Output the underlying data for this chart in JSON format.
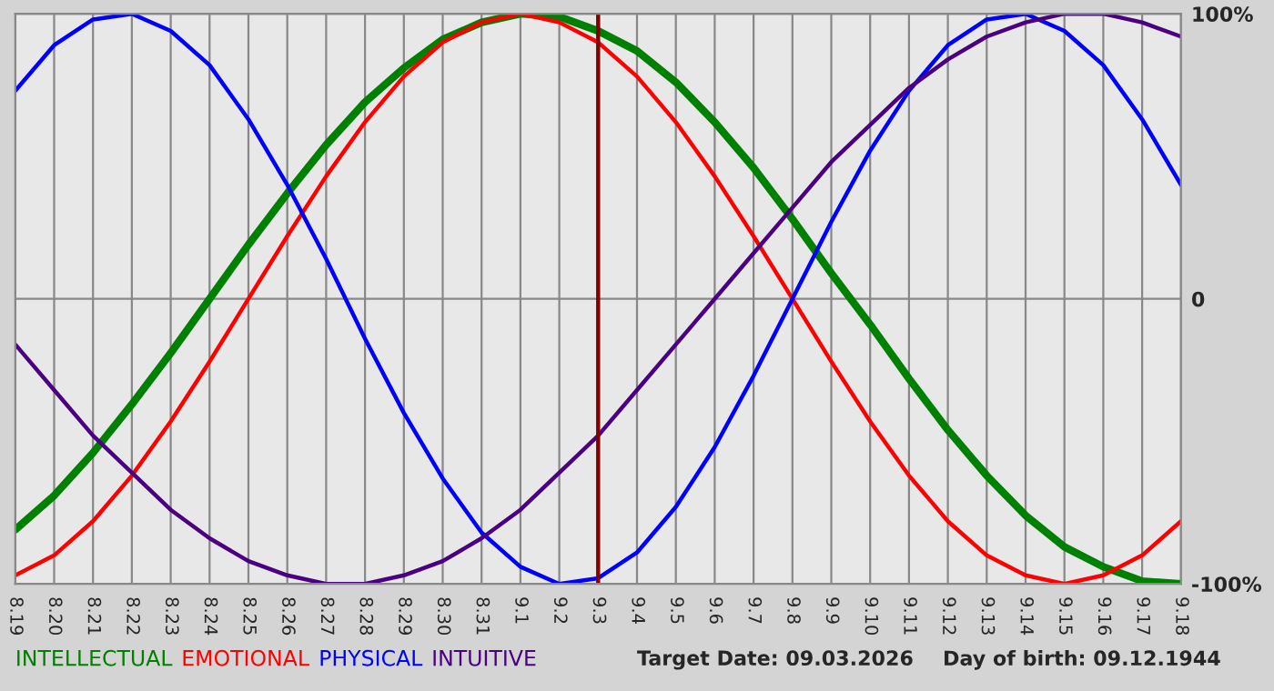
{
  "chart_data": {
    "type": "line",
    "categories": [
      "8.19",
      "8.20",
      "8.21",
      "8.22",
      "8.23",
      "8.24",
      "8.25",
      "8.26",
      "8.27",
      "8.28",
      "8.29",
      "8.30",
      "8.31",
      "9.1",
      "9.2",
      "9.3",
      "9.4",
      "9.5",
      "9.6",
      "9.7",
      "9.8",
      "9.9",
      "9.10",
      "9.11",
      "9.12",
      "9.13",
      "9.14",
      "9.15",
      "9.16",
      "9.17",
      "9.18"
    ],
    "series": [
      {
        "name": "INTELLECTUAL",
        "color": "#008000",
        "values": [
          -81,
          -69,
          -54,
          -37,
          -19,
          0,
          19,
          37,
          54,
          69,
          81,
          91,
          97,
          100,
          99,
          94,
          87,
          76,
          62,
          46,
          28,
          9,
          -9,
          -28,
          -46,
          -62,
          -76,
          -87,
          -94,
          -99,
          -100
        ]
      },
      {
        "name": "EMOTIONAL",
        "color": "#ff0000",
        "values": [
          -97,
          -90,
          -78,
          -62,
          -43,
          -22,
          0,
          22,
          43,
          62,
          78,
          90,
          97,
          100,
          97,
          90,
          78,
          62,
          43,
          22,
          0,
          -22,
          -43,
          -62,
          -78,
          -90,
          -97,
          -100,
          -97,
          -90,
          -78
        ]
      },
      {
        "name": "PHYSICAL",
        "color": "#0000ff",
        "values": [
          73,
          89,
          98,
          100,
          94,
          82,
          63,
          40,
          14,
          -14,
          -40,
          -63,
          -82,
          -94,
          -100,
          -98,
          -89,
          -73,
          -52,
          -27,
          0,
          27,
          52,
          73,
          89,
          98,
          100,
          94,
          82,
          63,
          40
        ]
      },
      {
        "name": "INTUITIVE",
        "color": "#4b0082",
        "values": [
          -16,
          -32,
          -48,
          -61,
          -74,
          -84,
          -92,
          -97,
          -100,
          -100,
          -97,
          -92,
          -84,
          -74,
          -61,
          -48,
          -32,
          -16,
          0,
          16,
          32,
          48,
          61,
          74,
          84,
          92,
          97,
          100,
          100,
          97,
          92
        ]
      }
    ],
    "ylim": [
      -100,
      100
    ],
    "yticks": [
      {
        "value": -100,
        "label": "-100%"
      },
      0,
      {
        "value": 100,
        "label": "100%"
      }
    ],
    "ref_lines": [
      {
        "axis": "x",
        "value": "9.3",
        "color": "#800000"
      }
    ],
    "annotations": [
      "Target Date: 09.03.2026",
      "Day of birth: 09.12.1944"
    ],
    "grid": true,
    "legend": "bottom",
    "line_style": "solid",
    "marker": "none"
  }
}
